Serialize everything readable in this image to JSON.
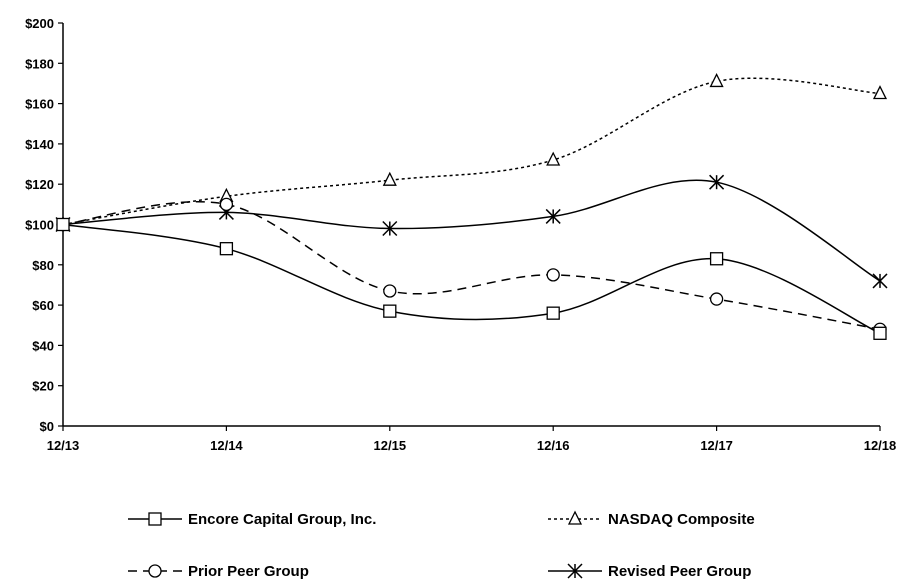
{
  "chart_data": {
    "type": "line",
    "title": "",
    "xlabel": "",
    "ylabel": "",
    "categories": [
      "12/13",
      "12/14",
      "12/15",
      "12/16",
      "12/17",
      "12/18"
    ],
    "ylim": [
      0,
      200
    ],
    "yticks": [
      "$0",
      "$20",
      "$40",
      "$60",
      "$80",
      "$100",
      "$120",
      "$140",
      "$160",
      "$180",
      "$200"
    ],
    "grid": false,
    "legend_position": "bottom",
    "series": [
      {
        "name": "Encore Capital Group, Inc.",
        "values": [
          100,
          88,
          57,
          56,
          83,
          46
        ],
        "marker": "square",
        "line": "solid"
      },
      {
        "name": "NASDAQ Composite",
        "values": [
          100,
          114,
          122,
          132,
          171,
          165
        ],
        "marker": "triangle",
        "line": "dotted"
      },
      {
        "name": "Prior Peer Group",
        "values": [
          100,
          110,
          67,
          75,
          63,
          48
        ],
        "marker": "circle",
        "line": "dashed"
      },
      {
        "name": "Revised Peer Group",
        "values": [
          100,
          106,
          98,
          104,
          121,
          72
        ],
        "marker": "star",
        "line": "solid"
      }
    ]
  }
}
